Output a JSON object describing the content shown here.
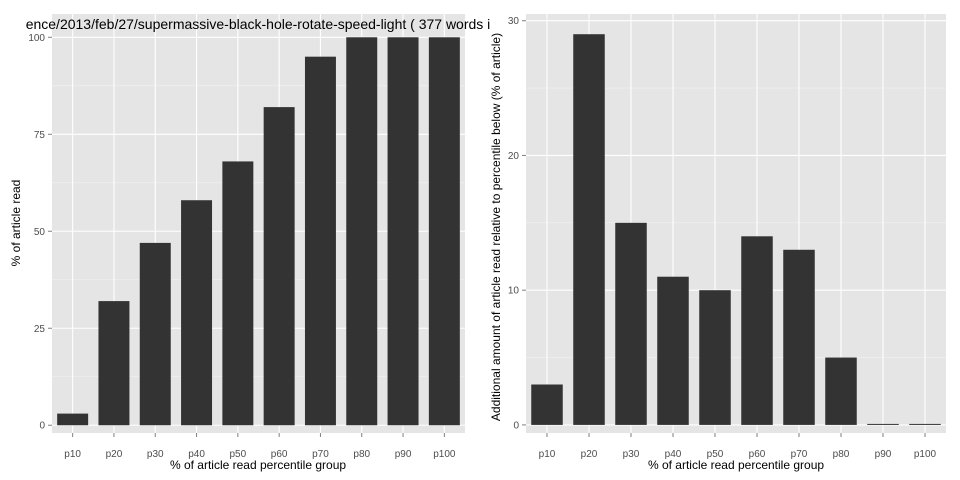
{
  "colors": {
    "panel_bg": "#e5e5e5",
    "grid_major": "#ffffff",
    "grid_minor": "#f2f2f2",
    "bar_fill": "#333333",
    "tick_text": "#4d4d4d",
    "tick_mark": "#7f7f7f"
  },
  "chart_data": [
    {
      "type": "bar",
      "title": "ence/2013/feb/27/supermassive-black-hole-rotate-speed-light ( 377 words i",
      "xlabel": "% of article read percentile group",
      "ylabel": "% of article read",
      "categories": [
        "p10",
        "p20",
        "p30",
        "p40",
        "p50",
        "p60",
        "p70",
        "p80",
        "p90",
        "p100"
      ],
      "values": [
        3,
        32,
        47,
        58,
        68,
        82,
        95,
        100,
        100,
        100
      ],
      "ylim": [
        -2,
        106
      ],
      "yticks": [
        0,
        25,
        50,
        75,
        100
      ],
      "ytick_labels": [
        "0",
        "25",
        "50",
        "75",
        "100"
      ],
      "grid": true
    },
    {
      "type": "bar",
      "title": "",
      "xlabel": "% of article read percentile group",
      "ylabel": "Additional amount of article read relative to percentile below (% of article)",
      "categories": [
        "p10",
        "p20",
        "p30",
        "p40",
        "p50",
        "p60",
        "p70",
        "p80",
        "p90",
        "p100"
      ],
      "values": [
        3,
        29,
        15,
        11,
        10,
        14,
        13,
        5,
        0,
        0
      ],
      "ylim": [
        -0.6,
        30.5
      ],
      "yticks": [
        0,
        10,
        20,
        30
      ],
      "ytick_labels": [
        "0",
        "10",
        "20",
        "30"
      ],
      "grid": true
    }
  ]
}
